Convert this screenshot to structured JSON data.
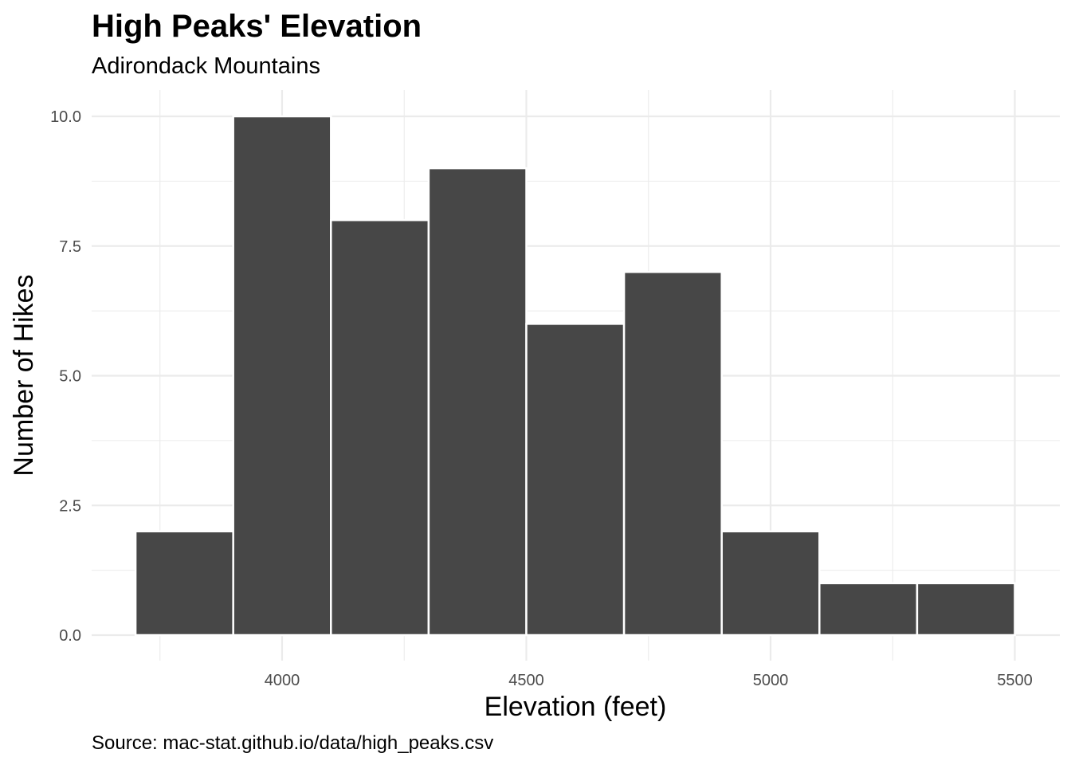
{
  "chart_data": {
    "type": "bar",
    "subtype": "histogram",
    "title": "High Peaks' Elevation",
    "subtitle": "Adirondack Mountains",
    "caption": "Source: mac-stat.github.io/data/high_peaks.csv",
    "xlabel": "Elevation (feet)",
    "ylabel": "Number of Hikes",
    "bin_width": 200,
    "bins": [
      {
        "start": 3700,
        "end": 3900,
        "count": 2
      },
      {
        "start": 3900,
        "end": 4100,
        "count": 10
      },
      {
        "start": 4100,
        "end": 4300,
        "count": 8
      },
      {
        "start": 4300,
        "end": 4500,
        "count": 9
      },
      {
        "start": 4500,
        "end": 4700,
        "count": 6
      },
      {
        "start": 4700,
        "end": 4900,
        "count": 7
      },
      {
        "start": 4900,
        "end": 5100,
        "count": 2
      },
      {
        "start": 5100,
        "end": 5300,
        "count": 1
      },
      {
        "start": 5300,
        "end": 5500,
        "count": 1
      }
    ],
    "xlim": [
      3620,
      5680
    ],
    "ylim": [
      0,
      10.5
    ],
    "x_ticks": [
      4000,
      4500,
      5000,
      5500
    ],
    "x_tick_labels": [
      "4000",
      "4500",
      "5000",
      "5500"
    ],
    "y_ticks": [
      0,
      2.5,
      5,
      7.5,
      10
    ],
    "y_tick_labels": [
      "0.0",
      "2.5",
      "5.0",
      "7.5",
      "10.0"
    ],
    "grid": true,
    "bar_color": "#474747",
    "bar_outline": "#ffffff",
    "grid_color": "#ebebeb"
  }
}
